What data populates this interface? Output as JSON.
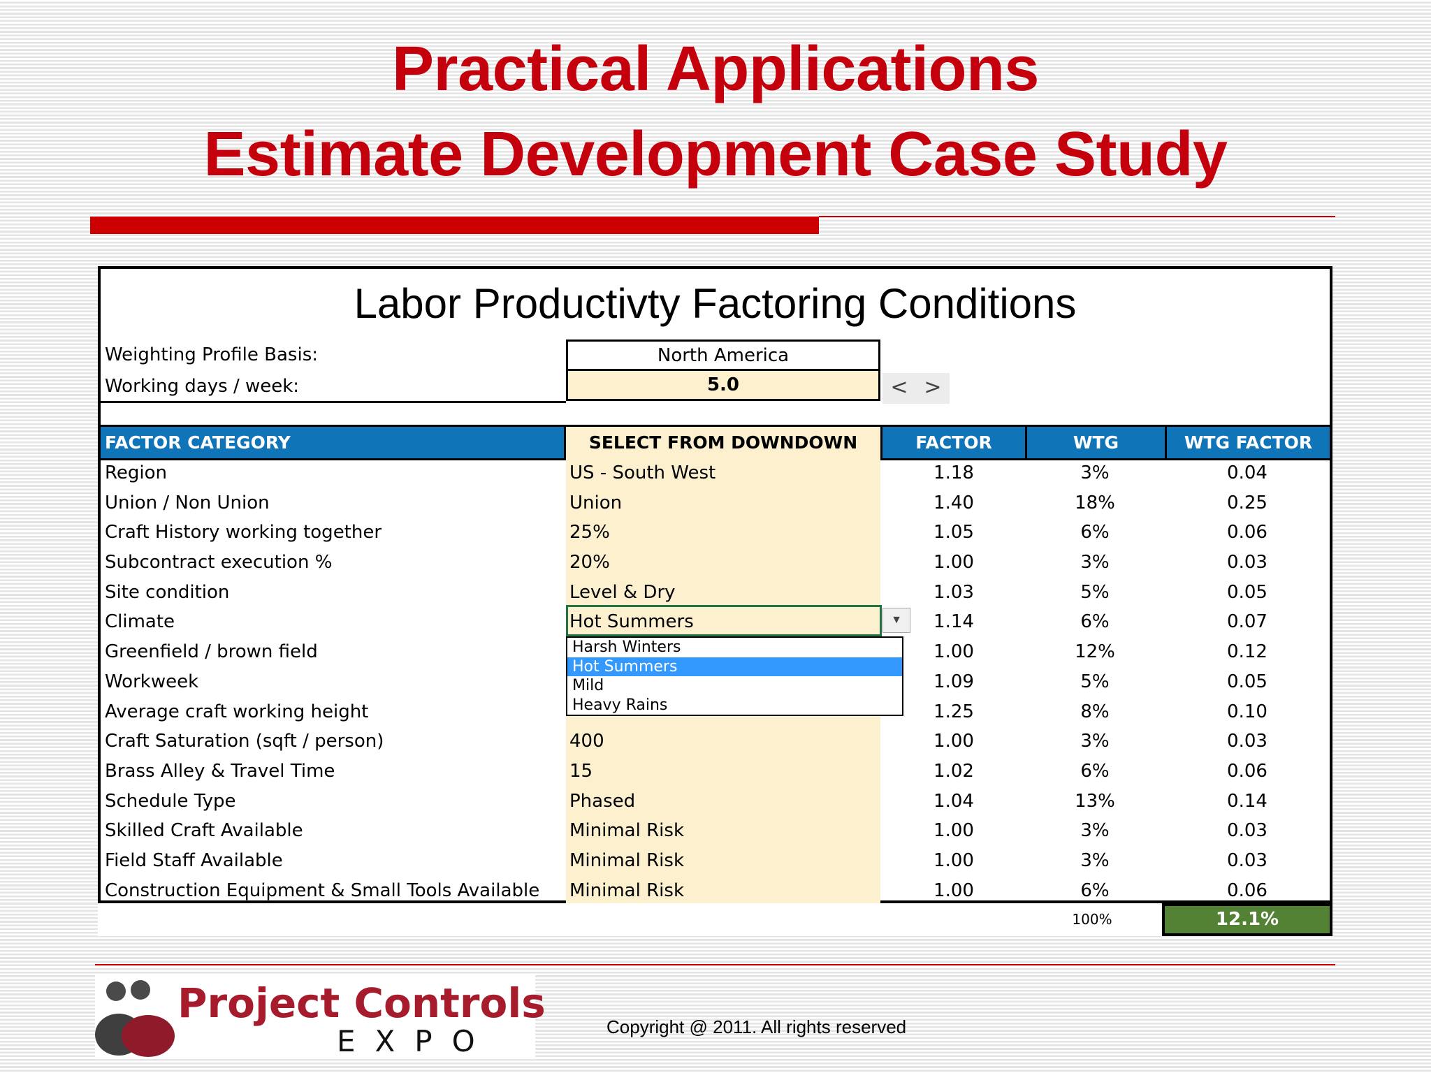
{
  "slide": {
    "title_line1": "Practical Applications",
    "title_line2": "Estimate Development Case Study"
  },
  "sheet": {
    "title": "Labor Productivty Factoring Conditions",
    "profile_label": "Weighting Profile Basis:",
    "profile_value": "North America",
    "days_label": "Working days / week:",
    "days_value": "5.0",
    "spinner_prev": "<",
    "spinner_next": ">",
    "headers": {
      "category": "FACTOR CATEGORY",
      "select": "SELECT FROM DOWNDOWN",
      "factor": "FACTOR",
      "wtg": "WTG",
      "wtg_factor": "WTG FACTOR"
    },
    "rows": [
      {
        "category": "Region",
        "selection": "US - South West",
        "factor": "1.18",
        "wtg": "3%",
        "wtg_factor": "0.04"
      },
      {
        "category": "Union / Non Union",
        "selection": "Union",
        "factor": "1.40",
        "wtg": "18%",
        "wtg_factor": "0.25"
      },
      {
        "category": "Craft History working together",
        "selection": "25%",
        "factor": "1.05",
        "wtg": "6%",
        "wtg_factor": "0.06"
      },
      {
        "category": "Subcontract execution %",
        "selection": "20%",
        "factor": "1.00",
        "wtg": "3%",
        "wtg_factor": "0.03"
      },
      {
        "category": "Site condition",
        "selection": "Level & Dry",
        "factor": "1.03",
        "wtg": "5%",
        "wtg_factor": "0.05"
      },
      {
        "category": "Climate",
        "selection": "Hot Summers",
        "factor": "1.14",
        "wtg": "6%",
        "wtg_factor": "0.07"
      },
      {
        "category": "Greenfield / brown field",
        "selection": "",
        "factor": "1.00",
        "wtg": "12%",
        "wtg_factor": "0.12"
      },
      {
        "category": "Workweek",
        "selection": "",
        "factor": "1.09",
        "wtg": "5%",
        "wtg_factor": "0.05"
      },
      {
        "category": "Average craft working height",
        "selection": "",
        "factor": "1.25",
        "wtg": "8%",
        "wtg_factor": "0.10"
      },
      {
        "category": "Craft Saturation (sqft / person)",
        "selection": "400",
        "factor": "1.00",
        "wtg": "3%",
        "wtg_factor": "0.03"
      },
      {
        "category": "Brass Alley & Travel Time",
        "selection": "15",
        "factor": "1.02",
        "wtg": "6%",
        "wtg_factor": "0.06"
      },
      {
        "category": "Schedule Type",
        "selection": "Phased",
        "factor": "1.04",
        "wtg": "13%",
        "wtg_factor": "0.14"
      },
      {
        "category": "Skilled Craft Available",
        "selection": "Minimal Risk",
        "factor": "1.00",
        "wtg": "3%",
        "wtg_factor": "0.03"
      },
      {
        "category": "Field Staff Available",
        "selection": "Minimal Risk",
        "factor": "1.00",
        "wtg": "3%",
        "wtg_factor": "0.03"
      },
      {
        "category": "Construction Equipment & Small Tools Available",
        "selection": "Minimal Risk",
        "factor": "1.00",
        "wtg": "6%",
        "wtg_factor": "0.06"
      }
    ],
    "dropdown": {
      "options": [
        "Harsh Winters",
        "Hot Summers",
        "Mild",
        "Heavy Rains"
      ],
      "selected": "Hot Summers"
    },
    "totals": {
      "wtg": "100%",
      "wtg_factor": "12.1%"
    }
  },
  "footer": {
    "logo_name": "Project Controls",
    "logo_sub": "EXPO",
    "copyright": "Copyright @ 2011. All rights reserved"
  },
  "colors": {
    "title_red": "#c4000c",
    "header_blue": "#0f74b8",
    "select_fill": "#fdf0cf",
    "total_green": "#548235",
    "dropdown_highlight": "#3399ff"
  }
}
